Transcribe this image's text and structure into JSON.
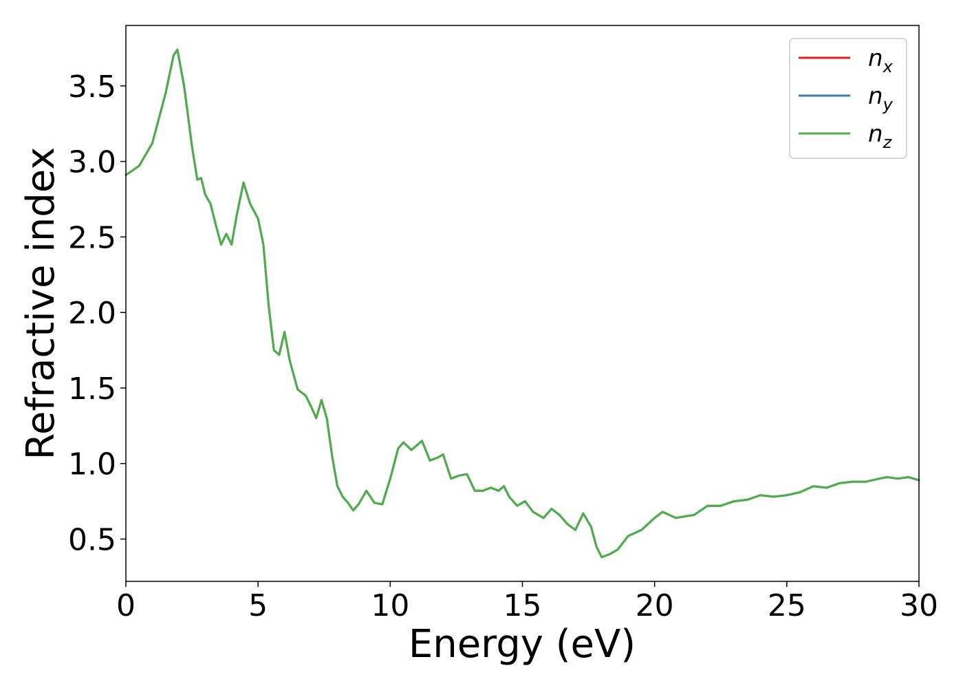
{
  "chart_data": {
    "type": "line",
    "xlabel": "Energy (eV)",
    "ylabel": "Refractive index",
    "xlim": [
      0,
      30
    ],
    "ylim": [
      0.22,
      3.9
    ],
    "xticks": [
      0,
      5,
      10,
      15,
      20,
      25,
      30
    ],
    "xtick_labels": [
      "0",
      "5",
      "10",
      "15",
      "20",
      "25",
      "30"
    ],
    "yticks": [
      0.5,
      1.0,
      1.5,
      2.0,
      2.5,
      3.0,
      3.5
    ],
    "ytick_labels": [
      "0.5",
      "1.0",
      "1.5",
      "2.0",
      "2.5",
      "3.0",
      "3.5"
    ],
    "grid": false,
    "legend_position": "top-right",
    "x": [
      0,
      0.5,
      1.0,
      1.5,
      1.8,
      1.95,
      2.2,
      2.5,
      2.7,
      2.85,
      3.0,
      3.2,
      3.4,
      3.6,
      3.8,
      4.0,
      4.2,
      4.45,
      4.7,
      5.0,
      5.2,
      5.4,
      5.6,
      5.8,
      6.0,
      6.2,
      6.5,
      6.8,
      7.0,
      7.2,
      7.4,
      7.6,
      7.8,
      8.0,
      8.2,
      8.4,
      8.6,
      8.8,
      9.1,
      9.4,
      9.7,
      10.0,
      10.3,
      10.5,
      10.8,
      11.2,
      11.5,
      11.8,
      12.0,
      12.3,
      12.6,
      12.9,
      13.2,
      13.5,
      13.8,
      14.1,
      14.3,
      14.5,
      14.8,
      15.1,
      15.4,
      15.8,
      16.1,
      16.4,
      16.7,
      17.0,
      17.3,
      17.6,
      17.8,
      18.0,
      18.3,
      18.6,
      19.0,
      19.5,
      20.0,
      20.3,
      20.8,
      21.5,
      22.0,
      22.5,
      23.0,
      23.5,
      24.0,
      24.5,
      25.0,
      25.5,
      26.0,
      26.5,
      27.0,
      27.5,
      28.0,
      28.5,
      28.8,
      29.2,
      29.6,
      30.0
    ],
    "series": [
      {
        "name": "n_x",
        "label_base": "n",
        "label_sub": "x",
        "color": "#e41a1c",
        "values": [
          2.91,
          2.97,
          3.12,
          3.45,
          3.7,
          3.74,
          3.5,
          3.1,
          2.88,
          2.89,
          2.78,
          2.72,
          2.58,
          2.45,
          2.52,
          2.45,
          2.65,
          2.86,
          2.72,
          2.62,
          2.45,
          2.05,
          1.75,
          1.72,
          1.87,
          1.68,
          1.49,
          1.45,
          1.38,
          1.3,
          1.42,
          1.3,
          1.05,
          0.85,
          0.78,
          0.74,
          0.69,
          0.73,
          0.82,
          0.74,
          0.73,
          0.9,
          1.1,
          1.14,
          1.09,
          1.15,
          1.02,
          1.04,
          1.06,
          0.9,
          0.92,
          0.93,
          0.82,
          0.82,
          0.84,
          0.82,
          0.85,
          0.78,
          0.72,
          0.75,
          0.68,
          0.64,
          0.7,
          0.66,
          0.6,
          0.56,
          0.67,
          0.58,
          0.45,
          0.38,
          0.4,
          0.43,
          0.52,
          0.56,
          0.64,
          0.68,
          0.64,
          0.66,
          0.72,
          0.72,
          0.75,
          0.76,
          0.79,
          0.78,
          0.79,
          0.81,
          0.85,
          0.84,
          0.87,
          0.88,
          0.88,
          0.9,
          0.91,
          0.9,
          0.91,
          0.89
        ]
      },
      {
        "name": "n_y",
        "label_base": "n",
        "label_sub": "y",
        "color": "#377eb8",
        "values": [
          2.91,
          2.97,
          3.12,
          3.45,
          3.7,
          3.74,
          3.5,
          3.1,
          2.88,
          2.89,
          2.78,
          2.72,
          2.58,
          2.45,
          2.52,
          2.45,
          2.65,
          2.86,
          2.72,
          2.62,
          2.45,
          2.05,
          1.75,
          1.72,
          1.87,
          1.68,
          1.49,
          1.45,
          1.38,
          1.3,
          1.42,
          1.3,
          1.05,
          0.85,
          0.78,
          0.74,
          0.69,
          0.73,
          0.82,
          0.74,
          0.73,
          0.9,
          1.1,
          1.14,
          1.09,
          1.15,
          1.02,
          1.04,
          1.06,
          0.9,
          0.92,
          0.93,
          0.82,
          0.82,
          0.84,
          0.82,
          0.85,
          0.78,
          0.72,
          0.75,
          0.68,
          0.64,
          0.7,
          0.66,
          0.6,
          0.56,
          0.67,
          0.58,
          0.45,
          0.38,
          0.4,
          0.43,
          0.52,
          0.56,
          0.64,
          0.68,
          0.64,
          0.66,
          0.72,
          0.72,
          0.75,
          0.76,
          0.79,
          0.78,
          0.79,
          0.81,
          0.85,
          0.84,
          0.87,
          0.88,
          0.88,
          0.9,
          0.91,
          0.9,
          0.91,
          0.89
        ]
      },
      {
        "name": "n_z",
        "label_base": "n",
        "label_sub": "z",
        "color": "#4daf4a",
        "values": [
          2.91,
          2.97,
          3.12,
          3.45,
          3.7,
          3.74,
          3.5,
          3.1,
          2.88,
          2.89,
          2.78,
          2.72,
          2.58,
          2.45,
          2.52,
          2.45,
          2.65,
          2.86,
          2.72,
          2.62,
          2.45,
          2.05,
          1.75,
          1.72,
          1.87,
          1.68,
          1.49,
          1.45,
          1.38,
          1.3,
          1.42,
          1.3,
          1.05,
          0.85,
          0.78,
          0.74,
          0.69,
          0.73,
          0.82,
          0.74,
          0.73,
          0.9,
          1.1,
          1.14,
          1.09,
          1.15,
          1.02,
          1.04,
          1.06,
          0.9,
          0.92,
          0.93,
          0.82,
          0.82,
          0.84,
          0.82,
          0.85,
          0.78,
          0.72,
          0.75,
          0.68,
          0.64,
          0.7,
          0.66,
          0.6,
          0.56,
          0.67,
          0.58,
          0.45,
          0.38,
          0.4,
          0.43,
          0.52,
          0.56,
          0.64,
          0.68,
          0.64,
          0.66,
          0.72,
          0.72,
          0.75,
          0.76,
          0.79,
          0.78,
          0.79,
          0.81,
          0.85,
          0.84,
          0.87,
          0.88,
          0.88,
          0.9,
          0.91,
          0.9,
          0.91,
          0.89
        ]
      }
    ]
  }
}
